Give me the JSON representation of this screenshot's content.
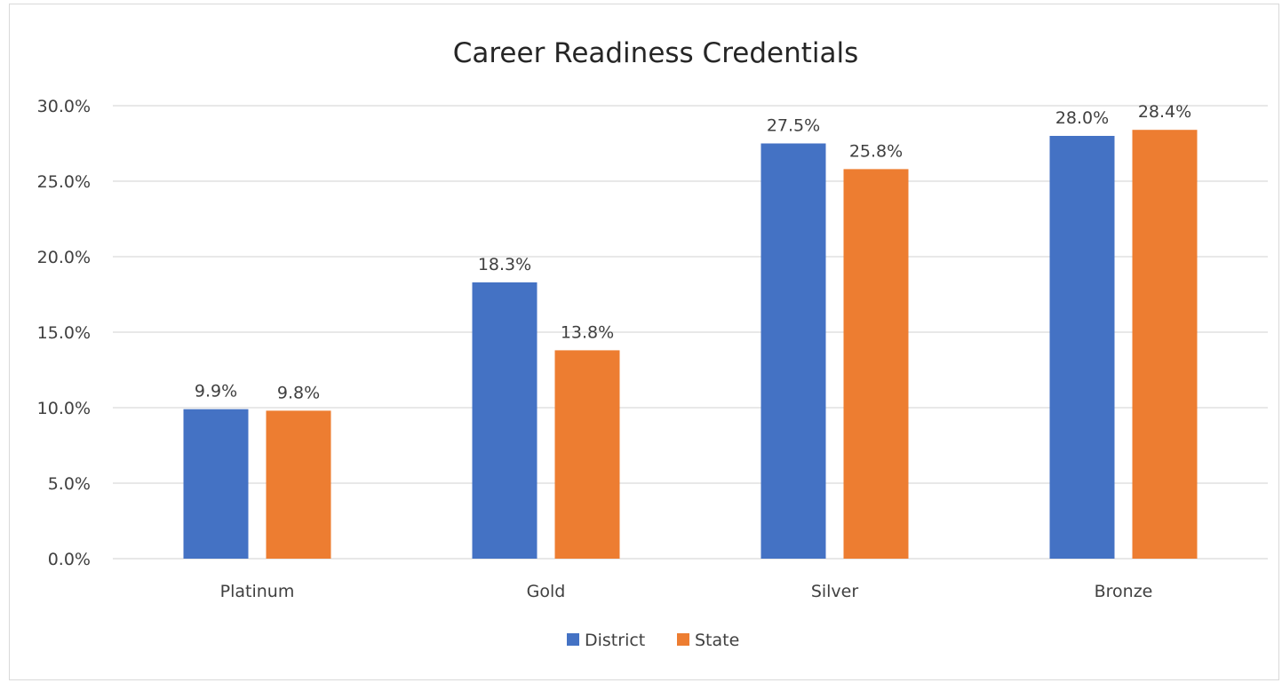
{
  "chart_data": {
    "type": "bar",
    "title": "Career Readiness Credentials",
    "xlabel": "",
    "ylabel": "",
    "categories": [
      "Platinum",
      "Gold",
      "Silver",
      "Bronze"
    ],
    "series": [
      {
        "name": "District",
        "color": "#4472C4",
        "values": [
          9.9,
          18.3,
          27.5,
          28.0
        ],
        "labels": [
          "9.9%",
          "18.3%",
          "27.5%",
          "28.0%"
        ]
      },
      {
        "name": "State",
        "color": "#ED7D31",
        "values": [
          9.8,
          13.8,
          25.8,
          28.4
        ],
        "labels": [
          "9.8%",
          "13.8%",
          "25.8%",
          "28.4%"
        ]
      }
    ],
    "ylim": [
      0,
      30
    ],
    "yticks": [
      0,
      5,
      10,
      15,
      20,
      25,
      30
    ],
    "ytick_labels": [
      "0.0%",
      "5.0%",
      "10.0%",
      "15.0%",
      "20.0%",
      "25.0%",
      "30.0%"
    ],
    "grid": true,
    "legend": "bottom"
  }
}
